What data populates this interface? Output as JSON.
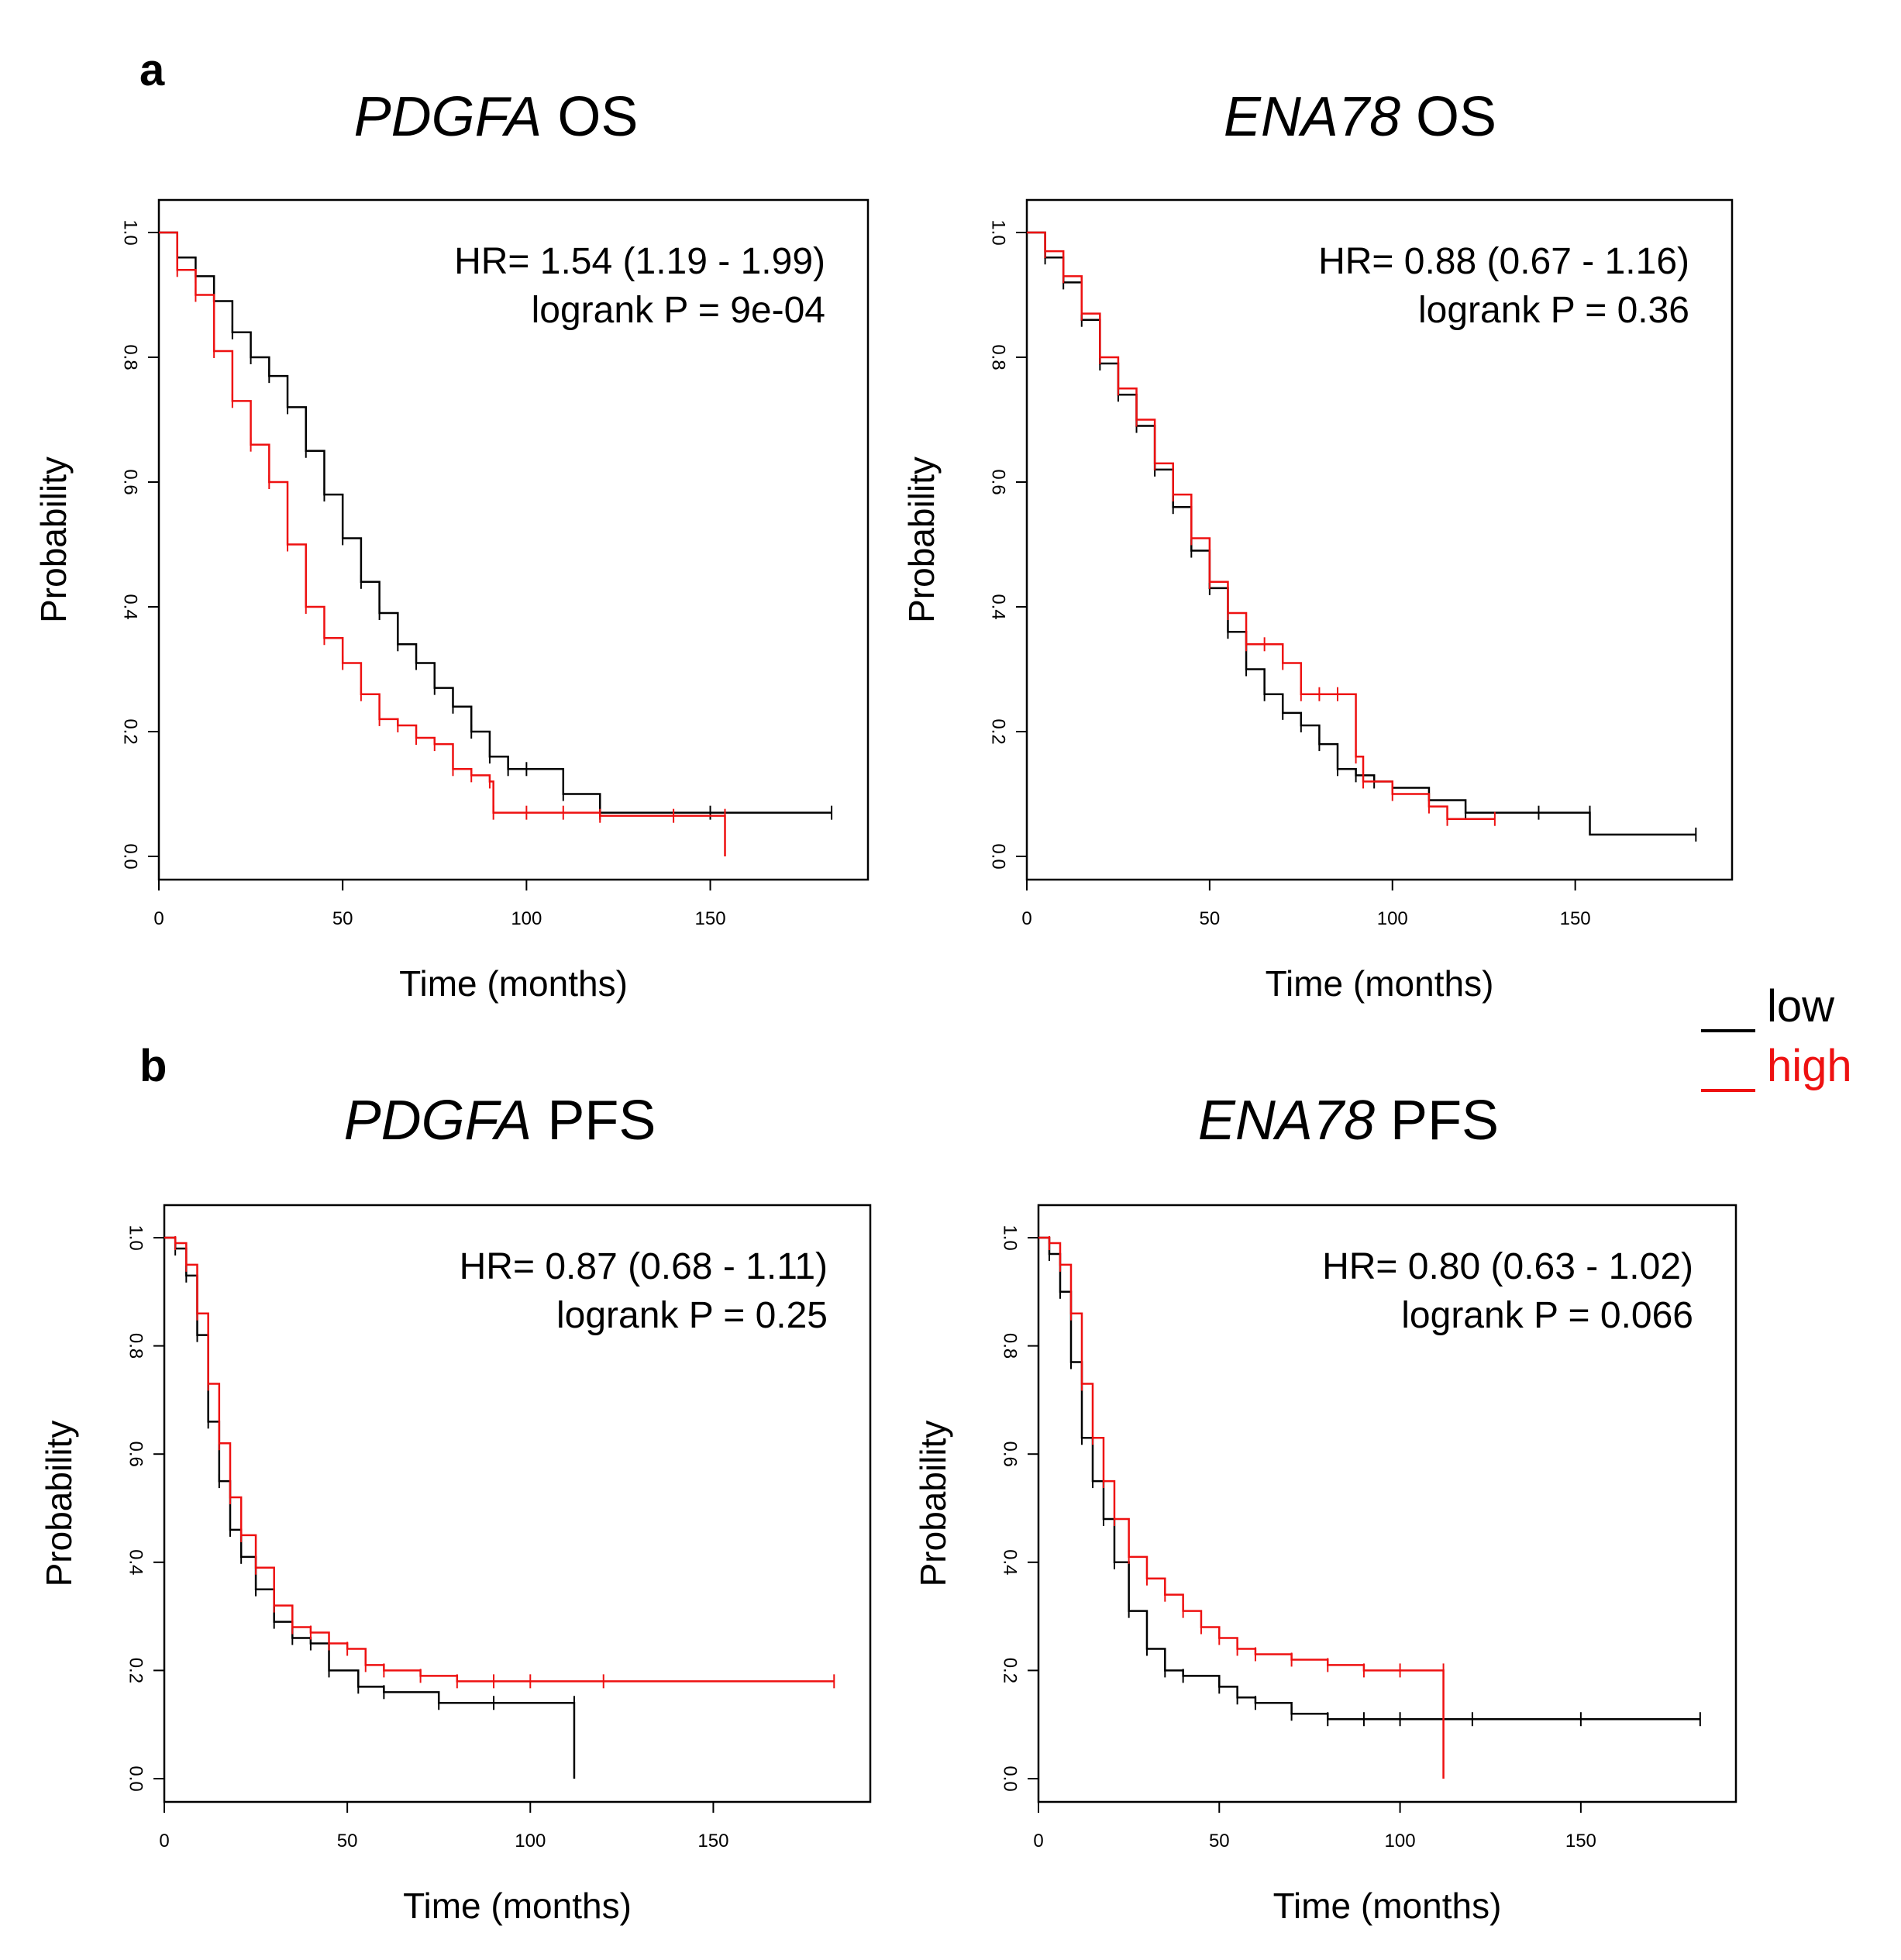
{
  "panel_labels": [
    "a",
    "b"
  ],
  "legend": {
    "entries": [
      {
        "label": "low",
        "color": "#000000"
      },
      {
        "label": "high",
        "color": "#ee1111"
      }
    ]
  },
  "chart_data": [
    {
      "type": "line",
      "subtype": "kaplan-meier",
      "title_gene": "PDGFA",
      "title_suffix": " OS",
      "xlabel": "Time (months)",
      "ylabel": "Probability",
      "xlim": [
        0,
        190
      ],
      "ylim": [
        0,
        1.0
      ],
      "xticks": [
        0,
        50,
        100,
        150
      ],
      "yticks": [
        "0.0",
        "0.2",
        "0.4",
        "0.6",
        "0.8",
        "1.0"
      ],
      "hr_text": "HR= 1.54 (1.19 - 1.99)",
      "p_text": "logrank P = 9e-04",
      "series": [
        {
          "name": "low",
          "color": "#000000",
          "x": [
            0,
            5,
            10,
            15,
            20,
            25,
            30,
            35,
            40,
            45,
            50,
            55,
            60,
            65,
            70,
            75,
            80,
            85,
            90,
            95,
            100,
            110,
            120,
            150,
            183
          ],
          "y": [
            1.0,
            0.96,
            0.93,
            0.89,
            0.84,
            0.8,
            0.77,
            0.72,
            0.65,
            0.58,
            0.51,
            0.44,
            0.39,
            0.34,
            0.31,
            0.27,
            0.24,
            0.2,
            0.16,
            0.14,
            0.14,
            0.1,
            0.07,
            0.07,
            0.07
          ]
        },
        {
          "name": "high",
          "color": "#ee1111",
          "x": [
            0,
            5,
            10,
            15,
            20,
            25,
            30,
            35,
            40,
            45,
            50,
            55,
            60,
            65,
            70,
            75,
            80,
            85,
            90,
            91,
            100,
            110,
            120,
            140,
            154,
            154
          ],
          "y": [
            1.0,
            0.94,
            0.9,
            0.81,
            0.73,
            0.66,
            0.6,
            0.5,
            0.4,
            0.35,
            0.31,
            0.26,
            0.22,
            0.21,
            0.19,
            0.18,
            0.14,
            0.13,
            0.12,
            0.07,
            0.07,
            0.07,
            0.065,
            0.065,
            0.065,
            0.0
          ]
        }
      ]
    },
    {
      "type": "line",
      "subtype": "kaplan-meier",
      "title_gene": "ENA78",
      "title_suffix": " OS",
      "xlabel": "Time (months)",
      "ylabel": "Probability",
      "xlim": [
        0,
        190
      ],
      "ylim": [
        0,
        1.0
      ],
      "xticks": [
        0,
        50,
        100,
        150
      ],
      "yticks": [
        "0.0",
        "0.2",
        "0.4",
        "0.6",
        "0.8",
        "1.0"
      ],
      "hr_text": "HR= 0.88 (0.67 - 1.16)",
      "p_text": "logrank P = 0.36",
      "series": [
        {
          "name": "low",
          "color": "#000000",
          "x": [
            0,
            5,
            10,
            15,
            20,
            25,
            30,
            35,
            40,
            45,
            50,
            55,
            60,
            65,
            70,
            75,
            80,
            85,
            90,
            95,
            100,
            110,
            120,
            140,
            154,
            154,
            183
          ],
          "y": [
            1.0,
            0.96,
            0.92,
            0.86,
            0.79,
            0.74,
            0.69,
            0.62,
            0.56,
            0.49,
            0.43,
            0.36,
            0.3,
            0.26,
            0.23,
            0.21,
            0.18,
            0.14,
            0.13,
            0.12,
            0.11,
            0.09,
            0.07,
            0.07,
            0.07,
            0.035,
            0.035
          ]
        },
        {
          "name": "high",
          "color": "#ee1111",
          "x": [
            0,
            5,
            10,
            15,
            20,
            25,
            30,
            35,
            40,
            45,
            50,
            55,
            60,
            65,
            70,
            75,
            80,
            85,
            90,
            92,
            100,
            110,
            115,
            128
          ],
          "y": [
            1.0,
            0.97,
            0.93,
            0.87,
            0.8,
            0.75,
            0.7,
            0.63,
            0.58,
            0.51,
            0.44,
            0.39,
            0.34,
            0.34,
            0.31,
            0.26,
            0.26,
            0.26,
            0.16,
            0.12,
            0.1,
            0.08,
            0.06,
            0.06
          ]
        }
      ]
    },
    {
      "type": "line",
      "subtype": "kaplan-meier",
      "title_gene": "PDGFA",
      "title_suffix": " PFS",
      "xlabel": "Time (months)",
      "ylabel": "Probability",
      "xlim": [
        0,
        190
      ],
      "ylim": [
        0,
        1.0
      ],
      "xticks": [
        0,
        50,
        100,
        150
      ],
      "yticks": [
        "0.0",
        "0.2",
        "0.4",
        "0.6",
        "0.8",
        "1.0"
      ],
      "hr_text": "HR= 0.87 (0.68 - 1.11)",
      "p_text": "logrank P = 0.25",
      "series": [
        {
          "name": "low",
          "color": "#000000",
          "x": [
            0,
            3,
            6,
            9,
            12,
            15,
            18,
            21,
            25,
            30,
            35,
            40,
            45,
            53,
            60,
            75,
            90,
            112,
            112
          ],
          "y": [
            1.0,
            0.98,
            0.93,
            0.82,
            0.66,
            0.55,
            0.46,
            0.41,
            0.35,
            0.29,
            0.26,
            0.25,
            0.2,
            0.17,
            0.16,
            0.14,
            0.14,
            0.14,
            0.0
          ]
        },
        {
          "name": "high",
          "color": "#ee1111",
          "x": [
            0,
            3,
            6,
            9,
            12,
            15,
            18,
            21,
            25,
            30,
            35,
            40,
            45,
            50,
            55,
            60,
            70,
            80,
            90,
            100,
            120,
            183
          ],
          "y": [
            1.0,
            0.99,
            0.95,
            0.86,
            0.73,
            0.62,
            0.52,
            0.45,
            0.39,
            0.32,
            0.28,
            0.27,
            0.25,
            0.24,
            0.21,
            0.2,
            0.19,
            0.18,
            0.18,
            0.18,
            0.18,
            0.18
          ]
        }
      ]
    },
    {
      "type": "line",
      "subtype": "kaplan-meier",
      "title_gene": "ENA78",
      "title_suffix": " PFS",
      "xlabel": "Time (months)",
      "ylabel": "Probability",
      "xlim": [
        0,
        190
      ],
      "ylim": [
        0,
        1.0
      ],
      "xticks": [
        0,
        50,
        100,
        150
      ],
      "yticks": [
        "0.0",
        "0.2",
        "0.4",
        "0.6",
        "0.8",
        "1.0"
      ],
      "hr_text": "HR= 0.80 (0.63 - 1.02)",
      "p_text": "logrank P = 0.066",
      "series": [
        {
          "name": "low",
          "color": "#000000",
          "x": [
            0,
            3,
            6,
            9,
            12,
            15,
            18,
            21,
            25,
            30,
            35,
            40,
            50,
            55,
            60,
            70,
            80,
            90,
            100,
            120,
            150,
            183
          ],
          "y": [
            1.0,
            0.97,
            0.9,
            0.77,
            0.63,
            0.55,
            0.48,
            0.4,
            0.31,
            0.24,
            0.2,
            0.19,
            0.17,
            0.15,
            0.14,
            0.12,
            0.11,
            0.11,
            0.11,
            0.11,
            0.11,
            0.11
          ]
        },
        {
          "name": "high",
          "color": "#ee1111",
          "x": [
            0,
            3,
            6,
            9,
            12,
            15,
            18,
            21,
            25,
            30,
            35,
            40,
            45,
            50,
            55,
            60,
            70,
            80,
            90,
            100,
            112,
            112
          ],
          "y": [
            1.0,
            0.99,
            0.95,
            0.86,
            0.73,
            0.63,
            0.55,
            0.48,
            0.41,
            0.37,
            0.34,
            0.31,
            0.28,
            0.26,
            0.24,
            0.23,
            0.22,
            0.21,
            0.2,
            0.2,
            0.2,
            0.0
          ]
        }
      ]
    }
  ]
}
